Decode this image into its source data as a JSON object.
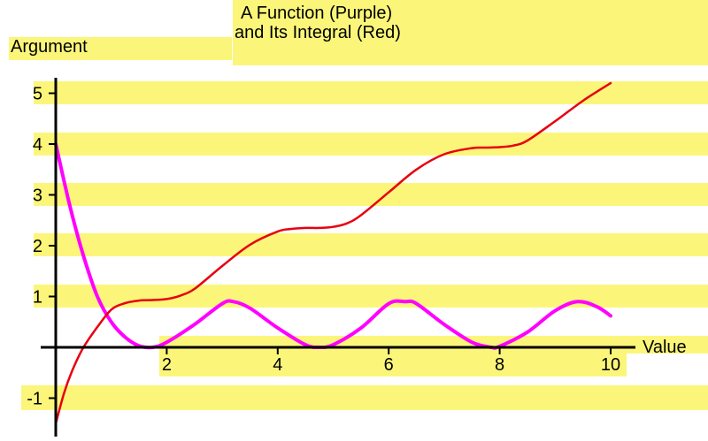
{
  "colors": {
    "band": "#fbf67a",
    "axis": "#000000",
    "function_curve": "#ff00ff",
    "integral_curve": "#e8000f"
  },
  "chart_data": {
    "type": "line",
    "title_line1": "A Function (Purple)",
    "title_line2": "and Its Integral (Red)",
    "xlabel": "Value",
    "ylabel": "Argument",
    "xlim": [
      0,
      10
    ],
    "ylim": [
      -1.5,
      5.3
    ],
    "x_ticks": [
      {
        "value": 2,
        "label": "2"
      },
      {
        "value": 4,
        "label": "4"
      },
      {
        "value": 6,
        "label": "6"
      },
      {
        "value": 8,
        "label": "8"
      },
      {
        "value": 10,
        "label": "10"
      }
    ],
    "y_ticks": [
      {
        "value": -1,
        "label": "-1"
      },
      {
        "value": 1,
        "label": "1"
      },
      {
        "value": 2,
        "label": "2"
      },
      {
        "value": 3,
        "label": "3"
      },
      {
        "value": 4,
        "label": "4"
      },
      {
        "value": 5,
        "label": "5"
      }
    ],
    "grid": "alternating yellow horizontal bands",
    "series": [
      {
        "key": "function",
        "x": [
          0,
          0.25,
          0.5,
          0.75,
          1.0,
          1.25,
          1.5,
          1.75,
          2.0,
          2.5,
          3.0,
          3.2,
          3.5,
          4.0,
          4.5,
          4.75,
          5.0,
          5.5,
          6.0,
          6.3,
          6.5,
          7.0,
          7.5,
          7.85,
          8.0,
          8.5,
          9.0,
          9.4,
          9.75,
          10.0
        ],
        "y": [
          4.0,
          2.8,
          1.8,
          1.0,
          0.5,
          0.2,
          0.03,
          0.0,
          0.1,
          0.45,
          0.86,
          0.9,
          0.77,
          0.38,
          0.05,
          0.0,
          0.05,
          0.38,
          0.86,
          0.9,
          0.86,
          0.45,
          0.1,
          0.0,
          0.02,
          0.3,
          0.72,
          0.9,
          0.8,
          0.62
        ]
      },
      {
        "key": "integral",
        "x": [
          0,
          0.15,
          0.3,
          0.5,
          0.75,
          1.0,
          1.25,
          1.5,
          1.75,
          2.0,
          2.25,
          2.5,
          3.0,
          3.5,
          4.0,
          4.25,
          4.5,
          4.75,
          5.0,
          5.25,
          5.5,
          6.0,
          6.5,
          7.0,
          7.5,
          7.75,
          8.0,
          8.25,
          8.5,
          9.0,
          9.5,
          10.0
        ],
        "y": [
          -1.5,
          -0.9,
          -0.45,
          0.0,
          0.4,
          0.74,
          0.87,
          0.92,
          0.93,
          0.95,
          1.02,
          1.15,
          1.6,
          2.02,
          2.28,
          2.33,
          2.35,
          2.35,
          2.37,
          2.44,
          2.6,
          3.05,
          3.5,
          3.8,
          3.92,
          3.93,
          3.94,
          3.97,
          4.07,
          4.45,
          4.85,
          5.2
        ]
      }
    ]
  }
}
